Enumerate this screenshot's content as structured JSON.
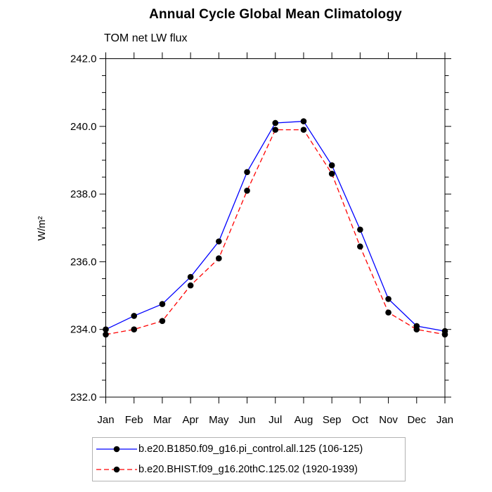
{
  "chart_data": {
    "type": "line",
    "title": "Annual Cycle Global Mean Climatology",
    "subtitle": "TOM net LW flux",
    "ylabel": "W/m²",
    "xlabel": "",
    "categories": [
      "Jan",
      "Feb",
      "Mar",
      "Apr",
      "May",
      "Jun",
      "Jul",
      "Aug",
      "Sep",
      "Oct",
      "Nov",
      "Dec",
      "Jan"
    ],
    "series": [
      {
        "name": "b.e20.B1850.f09_g16.pi_control.all.125 (106-125)",
        "color": "#0000ff",
        "style": "solid",
        "marker": "black-dot",
        "marker_color": "#000000",
        "values": [
          234.0,
          234.4,
          234.75,
          235.55,
          236.6,
          238.65,
          240.1,
          240.15,
          238.85,
          236.95,
          234.9,
          234.1,
          233.95
        ]
      },
      {
        "name": "b.e20.BHIST.f09_g16.20thC.125.02 (1920-1939)",
        "color": "#ff0000",
        "style": "dashed",
        "marker": "black-dot",
        "marker_color": "#000000",
        "values": [
          233.85,
          234.0,
          234.25,
          235.3,
          236.1,
          238.1,
          239.9,
          239.9,
          238.6,
          236.45,
          234.5,
          234.0,
          233.85
        ]
      }
    ],
    "ylim": [
      232.0,
      242.0
    ],
    "y_major_step": 2.0,
    "y_minor_step": 0.5,
    "y_tick_labels": [
      "232.0",
      "234.0",
      "236.0",
      "238.0",
      "240.0",
      "242.0"
    ],
    "grid": false,
    "legend_position": "bottom"
  }
}
